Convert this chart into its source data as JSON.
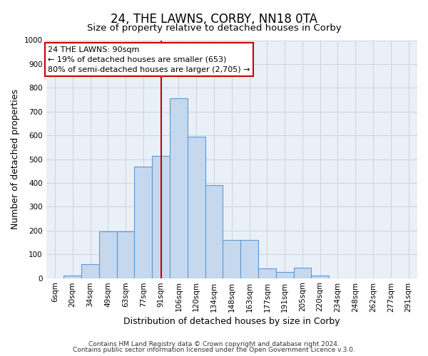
{
  "title": "24, THE LAWNS, CORBY, NN18 0TA",
  "subtitle": "Size of property relative to detached houses in Corby",
  "xlabel": "Distribution of detached houses by size in Corby",
  "ylabel": "Number of detached properties",
  "categories": [
    "6sqm",
    "20sqm",
    "34sqm",
    "49sqm",
    "63sqm",
    "77sqm",
    "91sqm",
    "106sqm",
    "120sqm",
    "134sqm",
    "148sqm",
    "163sqm",
    "177sqm",
    "191sqm",
    "205sqm",
    "220sqm",
    "234sqm",
    "248sqm",
    "262sqm",
    "277sqm",
    "291sqm"
  ],
  "values": [
    0,
    10,
    60,
    195,
    195,
    470,
    515,
    755,
    595,
    390,
    160,
    160,
    40,
    25,
    45,
    10,
    0,
    0,
    0,
    0,
    0
  ],
  "bar_color": "#c5d8ee",
  "bar_edge_color": "#5b9bd5",
  "bar_edge_width": 0.8,
  "vline_x_idx": 6,
  "vline_color": "#cc0000",
  "annotation_line1": "24 THE LAWNS: 90sqm",
  "annotation_line2": "← 19% of detached houses are smaller (653)",
  "annotation_line3": "80% of semi-detached houses are larger (2,705) →",
  "annotation_box_color": "#ffffff",
  "annotation_box_edge_color": "#cc0000",
  "ylim": [
    0,
    1000
  ],
  "yticks": [
    0,
    100,
    200,
    300,
    400,
    500,
    600,
    700,
    800,
    900,
    1000
  ],
  "footer_line1": "Contains HM Land Registry data © Crown copyright and database right 2024.",
  "footer_line2": "Contains public sector information licensed under the Open Government Licence v.3.0.",
  "bg_color": "#ffffff",
  "axes_bg_color": "#eaf0f8",
  "grid_color": "#c8d4e0",
  "title_fontsize": 12,
  "subtitle_fontsize": 9.5,
  "axis_label_fontsize": 9,
  "tick_fontsize": 7.5,
  "annotation_fontsize": 8,
  "footer_fontsize": 6.5
}
